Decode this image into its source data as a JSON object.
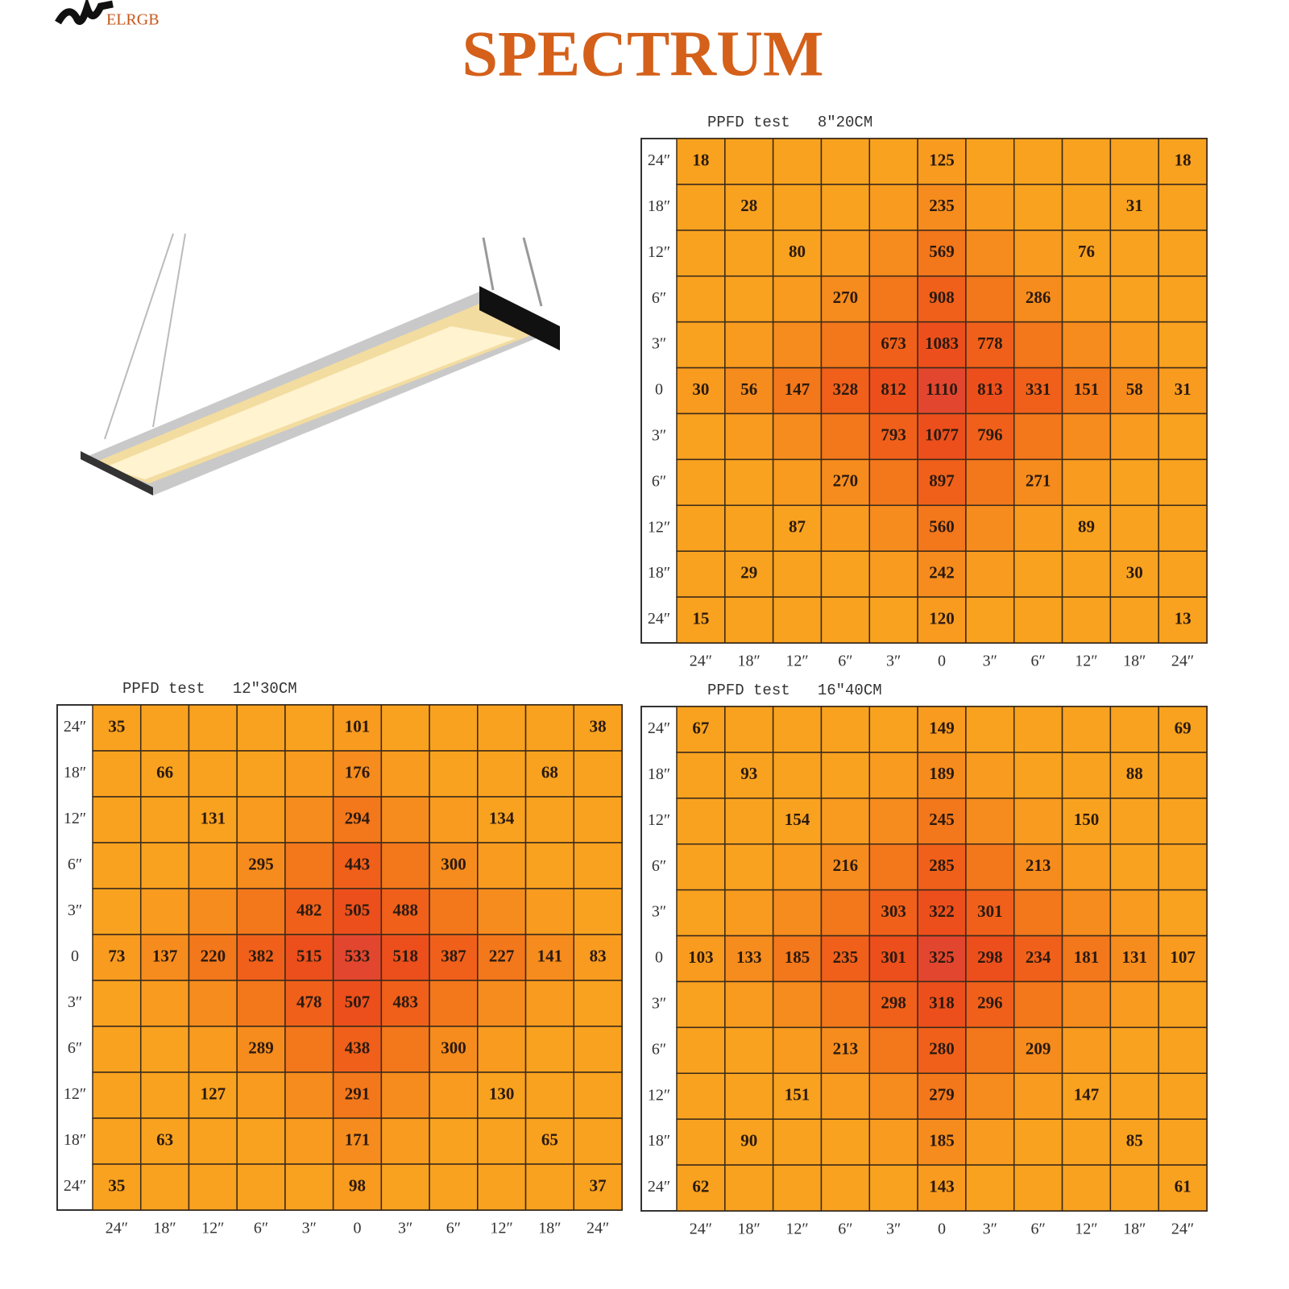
{
  "header": {
    "logo": "ELRGB",
    "title": "SPECTRUM"
  },
  "grids": [
    {
      "title": "PPFD test   8″20CM",
      "row_labels": [
        "24″",
        "18″",
        "12″",
        "6″",
        "3″",
        "0",
        "3″",
        "6″",
        "12″",
        "18″",
        "24″"
      ],
      "col_labels": [
        "24″",
        "18″",
        "12″",
        "6″",
        "3″",
        "0",
        "3″",
        "6″",
        "12″",
        "18″",
        "24″"
      ],
      "rows": [
        [
          18,
          null,
          null,
          null,
          null,
          125,
          null,
          null,
          null,
          null,
          18
        ],
        [
          null,
          28,
          null,
          null,
          null,
          235,
          null,
          null,
          null,
          31,
          null
        ],
        [
          null,
          null,
          80,
          null,
          null,
          569,
          null,
          null,
          76,
          null,
          null
        ],
        [
          null,
          null,
          null,
          270,
          null,
          908,
          null,
          286,
          null,
          null,
          null
        ],
        [
          null,
          null,
          null,
          null,
          673,
          1083,
          778,
          null,
          null,
          null,
          null
        ],
        [
          30,
          56,
          147,
          328,
          812,
          1110,
          813,
          331,
          151,
          58,
          31
        ],
        [
          null,
          null,
          null,
          null,
          793,
          1077,
          796,
          null,
          null,
          null,
          null
        ],
        [
          null,
          null,
          null,
          270,
          null,
          897,
          null,
          271,
          null,
          null,
          null
        ],
        [
          null,
          null,
          87,
          null,
          null,
          560,
          null,
          null,
          89,
          null,
          null
        ],
        [
          null,
          29,
          null,
          null,
          null,
          242,
          null,
          null,
          null,
          30,
          null
        ],
        [
          15,
          null,
          null,
          null,
          null,
          120,
          null,
          null,
          null,
          null,
          13
        ]
      ]
    },
    {
      "title": "PPFD test   12″30CM",
      "row_labels": [
        "24″",
        "18″",
        "12″",
        "6″",
        "3″",
        "0",
        "3″",
        "6″",
        "12″",
        "18″",
        "24″"
      ],
      "col_labels": [
        "24″",
        "18″",
        "12″",
        "6″",
        "3″",
        "0",
        "3″",
        "6″",
        "12″",
        "18″",
        "24″"
      ],
      "rows": [
        [
          35,
          null,
          null,
          null,
          null,
          101,
          null,
          null,
          null,
          null,
          38
        ],
        [
          null,
          66,
          null,
          null,
          null,
          176,
          null,
          null,
          null,
          68,
          null
        ],
        [
          null,
          null,
          131,
          null,
          null,
          294,
          null,
          null,
          134,
          null,
          null
        ],
        [
          null,
          null,
          null,
          295,
          null,
          443,
          null,
          300,
          null,
          null,
          null
        ],
        [
          null,
          null,
          null,
          null,
          482,
          505,
          488,
          null,
          null,
          null,
          null
        ],
        [
          73,
          137,
          220,
          382,
          515,
          533,
          518,
          387,
          227,
          141,
          83
        ],
        [
          null,
          null,
          null,
          null,
          478,
          507,
          483,
          null,
          null,
          null,
          null
        ],
        [
          null,
          null,
          null,
          289,
          null,
          438,
          null,
          300,
          null,
          null,
          null
        ],
        [
          null,
          null,
          127,
          null,
          null,
          291,
          null,
          null,
          130,
          null,
          null
        ],
        [
          null,
          63,
          null,
          null,
          null,
          171,
          null,
          null,
          null,
          65,
          null
        ],
        [
          35,
          null,
          null,
          null,
          null,
          98,
          null,
          null,
          null,
          null,
          37
        ]
      ]
    },
    {
      "title": "PPFD test   16″40CM",
      "row_labels": [
        "24″",
        "18″",
        "12″",
        "6″",
        "3″",
        "0",
        "3″",
        "6″",
        "12″",
        "18″",
        "24″"
      ],
      "col_labels": [
        "24″",
        "18″",
        "12″",
        "6″",
        "3″",
        "0",
        "3″",
        "6″",
        "12″",
        "18″",
        "24″"
      ],
      "rows": [
        [
          67,
          null,
          null,
          null,
          null,
          149,
          null,
          null,
          null,
          null,
          69
        ],
        [
          null,
          93,
          null,
          null,
          null,
          189,
          null,
          null,
          null,
          88,
          null
        ],
        [
          null,
          null,
          154,
          null,
          null,
          245,
          null,
          null,
          150,
          null,
          null
        ],
        [
          null,
          null,
          null,
          216,
          null,
          285,
          null,
          213,
          null,
          null,
          null
        ],
        [
          null,
          null,
          null,
          null,
          303,
          322,
          301,
          null,
          null,
          null,
          null
        ],
        [
          103,
          133,
          185,
          235,
          301,
          325,
          298,
          234,
          181,
          131,
          107
        ],
        [
          null,
          null,
          null,
          null,
          298,
          318,
          296,
          null,
          null,
          null,
          null
        ],
        [
          null,
          null,
          null,
          213,
          null,
          280,
          null,
          209,
          null,
          null,
          null
        ],
        [
          null,
          null,
          151,
          null,
          null,
          279,
          null,
          null,
          147,
          null,
          null
        ],
        [
          null,
          90,
          null,
          null,
          null,
          185,
          null,
          null,
          null,
          85,
          null
        ],
        [
          62,
          null,
          null,
          null,
          null,
          143,
          null,
          null,
          null,
          null,
          61
        ]
      ]
    }
  ]
}
